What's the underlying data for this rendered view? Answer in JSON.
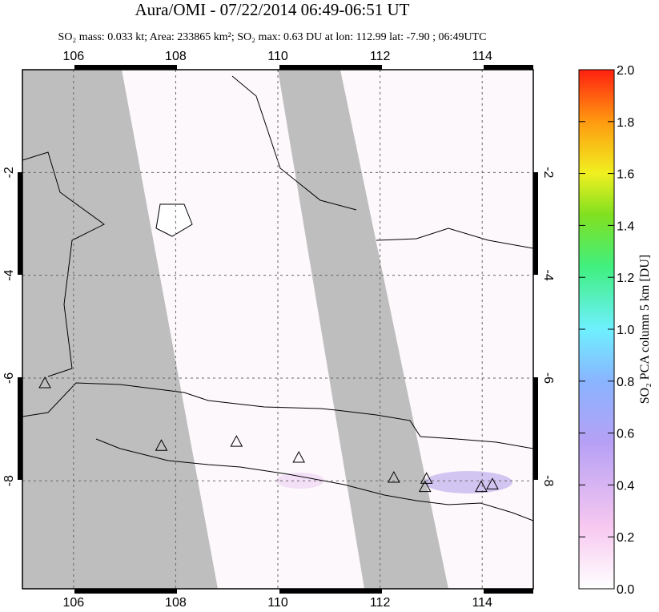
{
  "chart_data": {
    "type": "map",
    "title": "Aura/OMI - 07/22/2014 06:49-06:51 UT",
    "subtitle": "SO₂ mass: 0.033 kt; Area: 233865 km²; SO₂ max: 0.63 DU at lon: 112.99 lat: -7.90 ; 06:49UTC",
    "xlim": [
      105,
      115
    ],
    "ylim": [
      -10.1,
      0
    ],
    "xticks": [
      106,
      108,
      110,
      112,
      114
    ],
    "yticks": [
      -2,
      -4,
      -6,
      -8
    ],
    "grid": true,
    "volcanoes": {
      "lon": [
        105.44,
        107.72,
        109.19,
        110.41,
        112.27,
        112.91,
        112.88,
        113.98,
        114.2
      ],
      "lat": [
        -6.11,
        -7.33,
        -7.25,
        -7.56,
        -7.95,
        -7.97,
        -8.13,
        -8.13,
        -8.08
      ]
    },
    "colorbar": {
      "label": "SO₂ PCA column 5 km [DU]",
      "lim": [
        0,
        2
      ],
      "ticks": [
        {
          "value": 0,
          "label": "0.0"
        },
        0.2,
        0.4,
        0.6,
        0.8,
        {
          "value": 1,
          "label": "1.0"
        },
        1.2,
        1.4,
        1.6,
        1.8,
        {
          "value": 2,
          "label": "2.0"
        }
      ]
    }
  }
}
